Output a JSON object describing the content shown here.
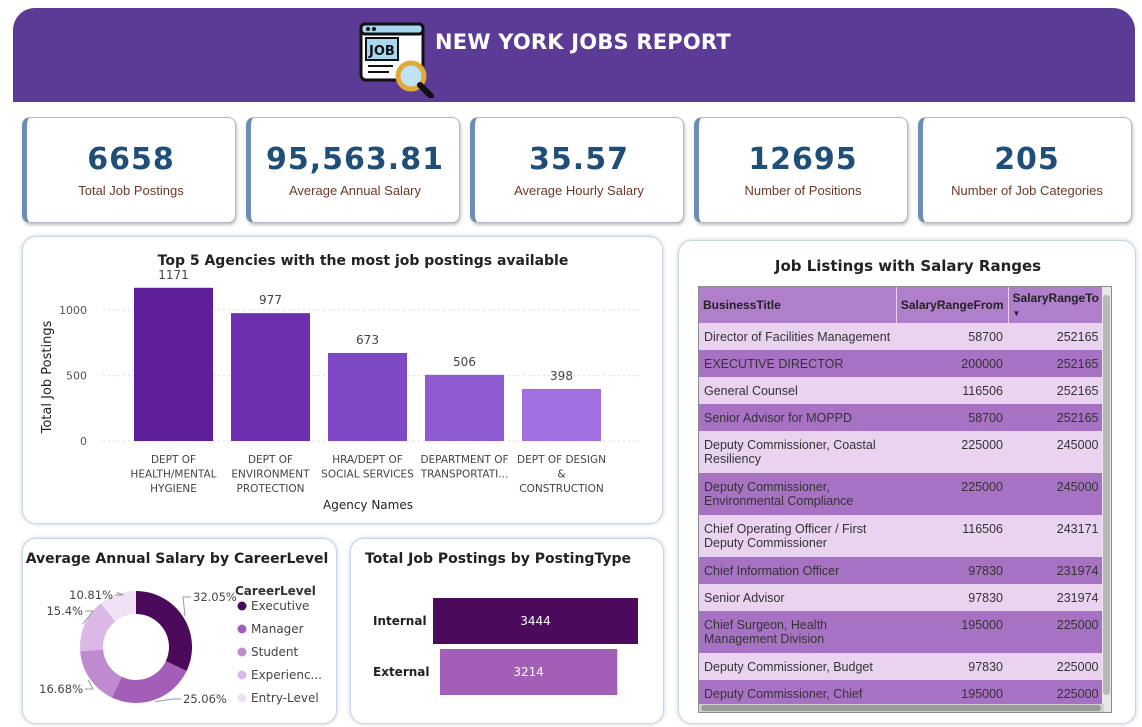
{
  "header": {
    "title": "NEW YORK JOBS REPORT",
    "icon_text": "JOB",
    "bg_color": "#5b3b96"
  },
  "kpis": [
    {
      "value": "6658",
      "label": "Total Job Postings"
    },
    {
      "value": "95,563.81",
      "label": "Average Annual Salary"
    },
    {
      "value": "35.57",
      "label": "Average Hourly Salary"
    },
    {
      "value": "12695",
      "label": "Number of Positions"
    },
    {
      "value": "205",
      "label": "Number of Job Categories"
    }
  ],
  "agencies_chart": {
    "title": "Top 5 Agencies with the most job postings available",
    "xlabel": "Agency Names",
    "ylabel": "Total Job Postings",
    "y_ticks": [
      "1000",
      "500",
      "0"
    ],
    "chart_data": {
      "type": "bar",
      "categories": [
        "DEPT OF HEALTH/MENTAL HYGIENE",
        "DEPT OF ENVIRONMENT PROTECTION",
        "HRA/DEPT OF SOCIAL SERVICES",
        "DEPARTMENT OF TRANSPORTATI...",
        "DEPT OF DESIGN & CONSTRUCTION"
      ],
      "category_lines": [
        [
          "DEPT OF",
          "HEALTH/MENTAL",
          "HYGIENE"
        ],
        [
          "DEPT OF",
          "ENVIRONMENT",
          "PROTECTION"
        ],
        [
          "HRA/DEPT OF",
          "SOCIAL SERVICES"
        ],
        [
          "DEPARTMENT OF",
          "TRANSPORTATI..."
        ],
        [
          "DEPT OF DESIGN",
          "&",
          "CONSTRUCTION"
        ]
      ],
      "values": [
        1171,
        977,
        673,
        506,
        398
      ],
      "colors": [
        "#5f1f9a",
        "#6d2fb0",
        "#7f48c4",
        "#8e5bd2",
        "#a070e0"
      ],
      "ylim": [
        0,
        1200
      ],
      "title": "Top 5 Agencies with the most job postings available",
      "xlabel": "Agency Names",
      "ylabel": "Total Job Postings"
    }
  },
  "salary_table": {
    "title": "Job Listings with Salary Ranges",
    "columns": [
      "BusinessTitle",
      "SalaryRangeFrom",
      "SalaryRangeTo"
    ],
    "sort_indicator": "▼",
    "rows": [
      [
        "Director of Facilities Management",
        "58700",
        "252165"
      ],
      [
        "EXECUTIVE DIRECTOR",
        "200000",
        "252165"
      ],
      [
        "General Counsel",
        "116506",
        "252165"
      ],
      [
        "Senior Advisor for MOPPD",
        "58700",
        "252165"
      ],
      [
        "Deputy Commissioner, Coastal Resiliency",
        "225000",
        "245000"
      ],
      [
        "Deputy Commissioner, Environmental Compliance",
        "225000",
        "245000"
      ],
      [
        "Chief Operating Officer / First Deputy Commissioner",
        "116506",
        "243171"
      ],
      [
        "Chief Information Officer",
        "97830",
        "231974"
      ],
      [
        "Senior Advisor",
        "97830",
        "231974"
      ],
      [
        "Chief Surgeon, Health Management Division",
        "195000",
        "225000"
      ],
      [
        "Deputy Commissioner, Budget",
        "97830",
        "225000"
      ],
      [
        "Deputy Commissioner, Chief",
        "195000",
        "225000"
      ]
    ]
  },
  "career_chart": {
    "title": "Average Annual Salary by CareerLevel",
    "legend_title": "CareerLevel",
    "chart_data": {
      "type": "pie",
      "categories": [
        "Executive",
        "Manager",
        "Student",
        "Experienc...",
        "Entry-Level"
      ],
      "values": [
        32.05,
        25.06,
        16.68,
        15.4,
        10.81
      ],
      "labels": [
        "32.05%",
        "25.06%",
        "16.68%",
        "15.4%",
        "10.81%"
      ],
      "colors": [
        "#4b0a5c",
        "#a35fb8",
        "#c08ad0",
        "#dcb8e6",
        "#efe0f4"
      ],
      "title": "Average Annual Salary by CareerLevel"
    }
  },
  "posting_chart": {
    "title": "Total Job Postings by PostingType",
    "chart_data": {
      "type": "bar",
      "orientation": "horizontal",
      "categories": [
        "Internal",
        "External"
      ],
      "values": [
        3444,
        3214
      ],
      "labels": [
        "3444",
        "3214"
      ],
      "colors": [
        "#4b0a5c",
        "#a35fb8"
      ],
      "xlim": [
        0,
        3444
      ],
      "title": "Total Job Postings by PostingType"
    }
  }
}
